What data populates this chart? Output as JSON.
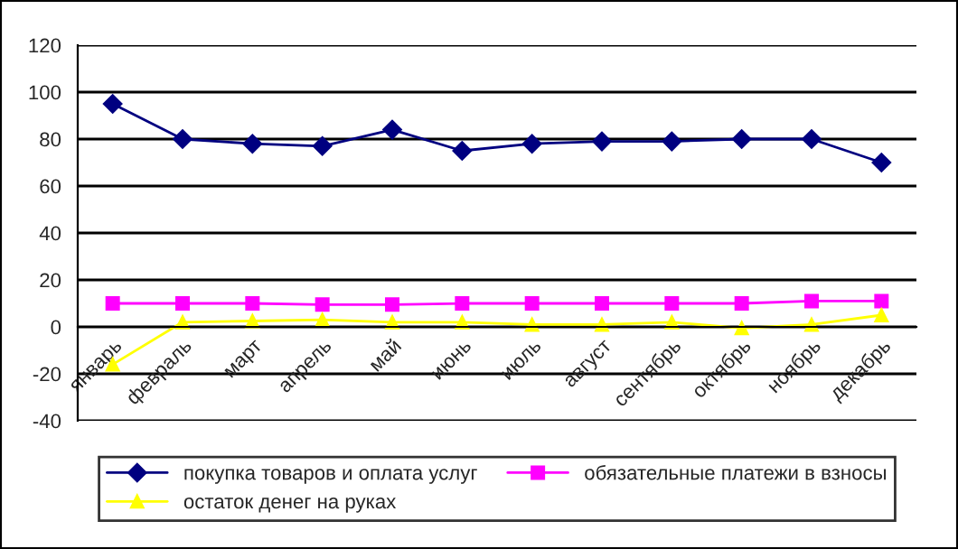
{
  "chart_data": {
    "type": "line",
    "categories": [
      "январь",
      "февраль",
      "март",
      "апрель",
      "май",
      "июнь",
      "июль",
      "август",
      "сентябрь",
      "октябрь",
      "ноябрь",
      "декабрь"
    ],
    "series": [
      {
        "name": "покупка товаров и оплата услуг",
        "color": "#000080",
        "marker": "diamond",
        "values": [
          95,
          80,
          78,
          77,
          84,
          75,
          78,
          79,
          79,
          80,
          80,
          70
        ]
      },
      {
        "name": "обязательные платежи в взносы",
        "color": "#ff00ff",
        "marker": "square",
        "values": [
          10,
          10,
          10,
          9.5,
          9.5,
          10,
          10,
          10,
          10,
          10,
          11,
          11
        ]
      },
      {
        "name": "остаток денег на руках",
        "color": "#ffff00",
        "marker": "triangle",
        "values": [
          -16,
          2,
          2.5,
          3,
          2,
          2,
          1,
          1,
          2,
          -0.5,
          1,
          5
        ]
      }
    ],
    "ylim": [
      -40,
      120
    ],
    "yticks": [
      -40,
      -20,
      0,
      20,
      40,
      60,
      80,
      100,
      120
    ],
    "grid": "y",
    "legend": "bottom",
    "line_style": "solid"
  }
}
